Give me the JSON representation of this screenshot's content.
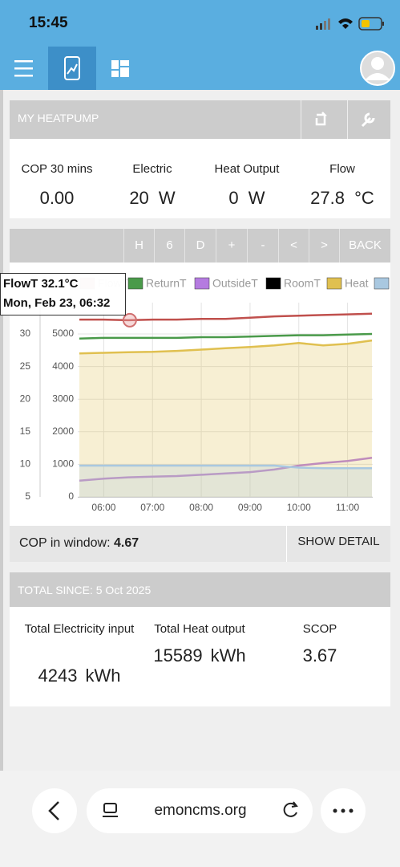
{
  "status_bar": {
    "time": "15:45"
  },
  "header": {
    "title": "MY HEATPUMP"
  },
  "stats": [
    {
      "label": "COP 30 mins",
      "value": "0.00"
    },
    {
      "label": "Electric",
      "value": "20",
      "unit": "W"
    },
    {
      "label": "Heat Output",
      "value": "0",
      "unit": "W"
    },
    {
      "label": "Flow",
      "value": "27.8",
      "unit": "°C"
    }
  ],
  "toolbar": {
    "buttons": [
      "H",
      "6",
      "D",
      "+",
      "-",
      "<",
      ">",
      "BACK"
    ]
  },
  "chart": {
    "type": "line",
    "x": [
      330,
      360,
      390,
      420,
      450,
      480,
      510,
      540,
      570,
      600,
      630,
      660,
      690
    ],
    "xlim": [
      328,
      691
    ],
    "xticks": [
      {
        "value": 360,
        "label": "06:00"
      },
      {
        "value": 420,
        "label": "07:00"
      },
      {
        "value": 480,
        "label": "08:00"
      },
      {
        "value": 540,
        "label": "09:00"
      },
      {
        "value": 600,
        "label": "10:00"
      },
      {
        "value": 660,
        "label": "11:00"
      }
    ],
    "ylim": [
      5,
      34.8
    ],
    "yticks": [
      5,
      10,
      15,
      20,
      25,
      30
    ],
    "y2lim": [
      0,
      5960
    ],
    "y2ticks": [
      0,
      1000,
      2000,
      3000,
      4000,
      5000
    ],
    "grid": true,
    "series": [
      {
        "name": "FlowT",
        "color": "#c0504d",
        "values": [
          32.2,
          32.2,
          32.1,
          32.2,
          32.2,
          32.3,
          32.3,
          32.5,
          32.7,
          32.8,
          32.9,
          33.0,
          33.1
        ]
      },
      {
        "name": "ReturnT",
        "color": "#4a9a4a",
        "values": [
          29.3,
          29.4,
          29.4,
          29.4,
          29.4,
          29.5,
          29.5,
          29.6,
          29.7,
          29.8,
          29.8,
          29.9,
          30.0
        ]
      },
      {
        "name": "OutsideT",
        "color": "#b57be0",
        "values": [
          7.5,
          7.8,
          8.0,
          8.1,
          8.2,
          8.4,
          8.6,
          8.8,
          9.2,
          9.8,
          10.2,
          10.5,
          11.0
        ]
      },
      {
        "name": "RoomT",
        "color": "#000000"
      },
      {
        "name": "Heat",
        "color": "#e0c050",
        "axis": "y2",
        "fill": true,
        "values": [
          4400,
          4420,
          4440,
          4450,
          4480,
          4520,
          4560,
          4600,
          4650,
          4720,
          4650,
          4700,
          4800
        ]
      },
      {
        "color": "#a9c8e0",
        "axis": "y2",
        "fill": true,
        "values": [
          960,
          960,
          960,
          960,
          960,
          960,
          960,
          960,
          960,
          900,
          880,
          880,
          880
        ]
      }
    ],
    "tooltip": {
      "title": "FlowT 32.1°C",
      "subtitle": "Mon, Feb 23, 06:32",
      "point": {
        "x": 392,
        "y": 32.1
      }
    }
  },
  "cop_window": {
    "label": "COP in window:",
    "value": "4.67",
    "button": "SHOW DETAIL"
  },
  "totals": {
    "title": "TOTAL SINCE: 5 Oct 2025",
    "items": [
      {
        "label": "Total Electricity input",
        "value": "4243",
        "unit": "kWh"
      },
      {
        "label": "Total Heat output",
        "value": "15589",
        "unit": "kWh"
      },
      {
        "label": "SCOP",
        "value": "3.67"
      }
    ]
  },
  "browser": {
    "url": "emoncms.org"
  }
}
